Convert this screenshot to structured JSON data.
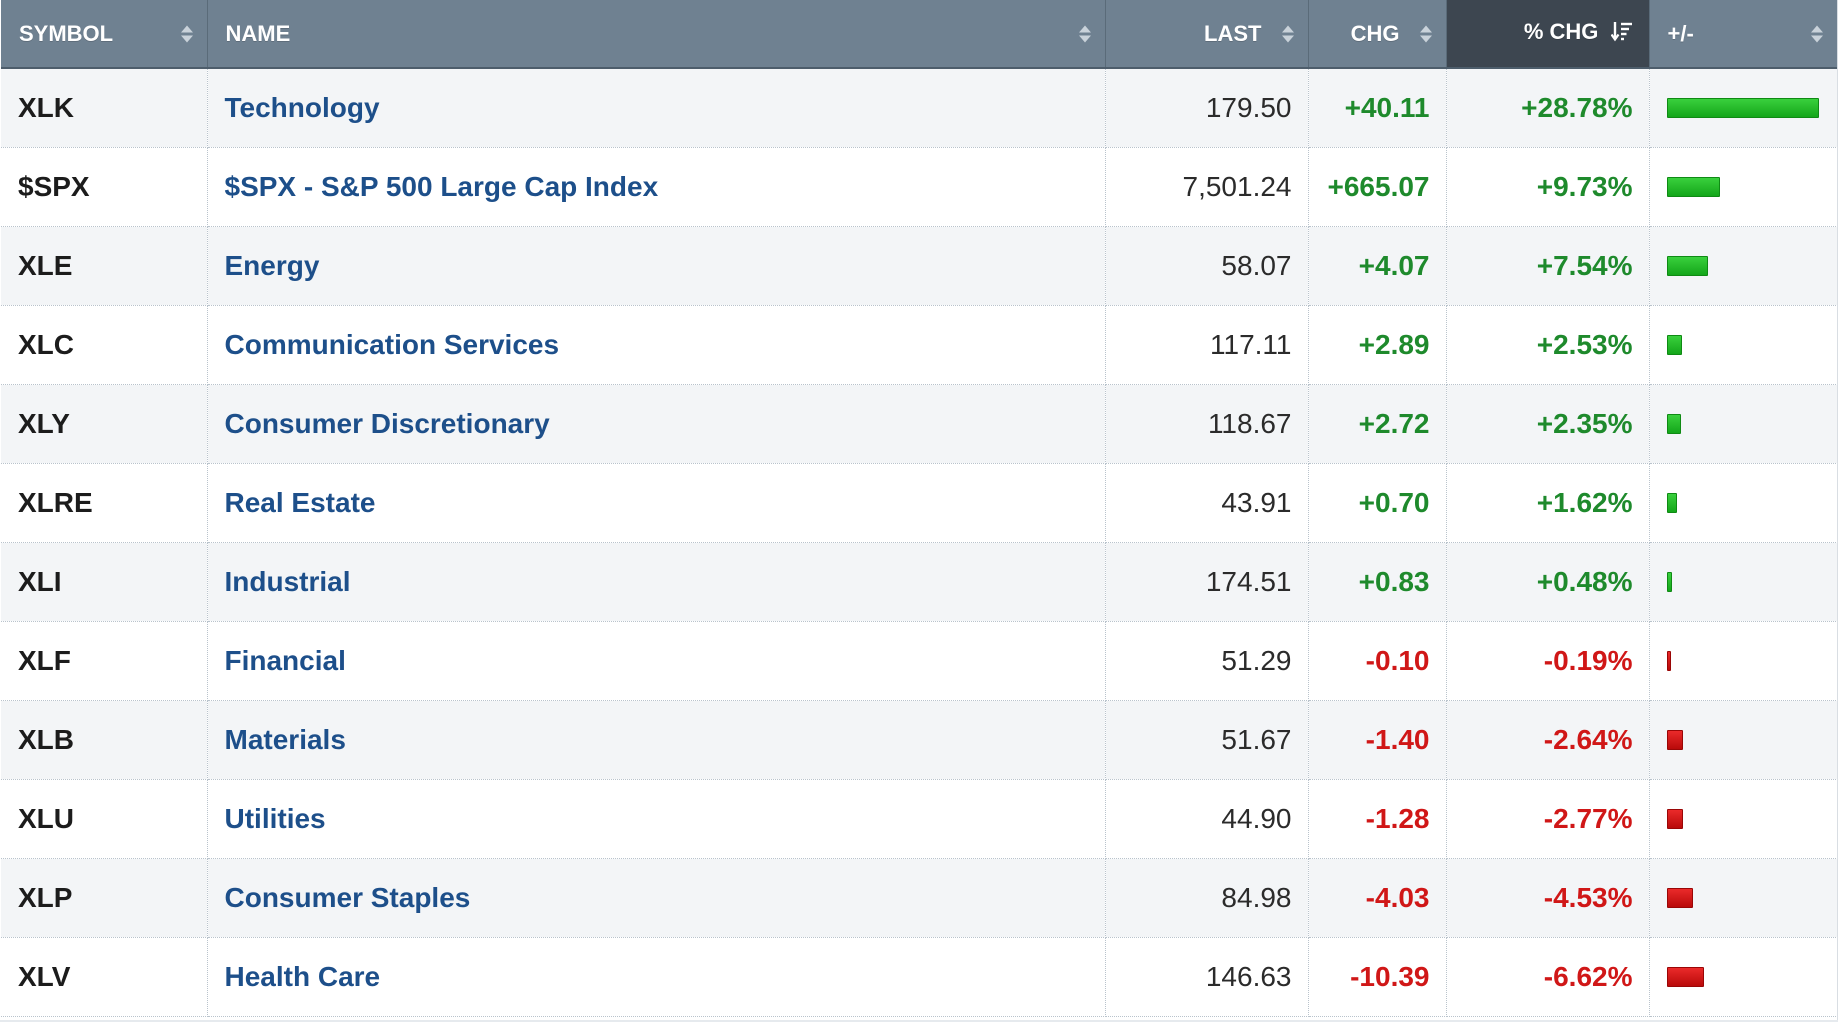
{
  "columns": {
    "symbol": "SYMBOL",
    "name": "NAME",
    "last": "LAST",
    "chg": "CHG",
    "pct_chg": "% CHG",
    "bar": "+/-"
  },
  "sort": {
    "column": "pct_chg",
    "direction": "descending"
  },
  "colors": {
    "header_bg": "#6f8191",
    "header_active_bg": "#3d4650",
    "name_link": "#1d4f8a",
    "positive": "#1e8a2c",
    "negative": "#d01717"
  },
  "rows": [
    {
      "symbol": "XLK",
      "name": "Technology",
      "last": "179.50",
      "chg": "+40.11",
      "pct": "+28.78%",
      "pct_value": 28.78
    },
    {
      "symbol": "$SPX",
      "name": "$SPX - S&P 500 Large Cap Index",
      "last": "7,501.24",
      "chg": "+665.07",
      "pct": "+9.73%",
      "pct_value": 9.73
    },
    {
      "symbol": "XLE",
      "name": "Energy",
      "last": "58.07",
      "chg": "+4.07",
      "pct": "+7.54%",
      "pct_value": 7.54
    },
    {
      "symbol": "XLC",
      "name": "Communication Services",
      "last": "117.11",
      "chg": "+2.89",
      "pct": "+2.53%",
      "pct_value": 2.53
    },
    {
      "symbol": "XLY",
      "name": "Consumer Discretionary",
      "last": "118.67",
      "chg": "+2.72",
      "pct": "+2.35%",
      "pct_value": 2.35
    },
    {
      "symbol": "XLRE",
      "name": "Real Estate",
      "last": "43.91",
      "chg": "+0.70",
      "pct": "+1.62%",
      "pct_value": 1.62
    },
    {
      "symbol": "XLI",
      "name": "Industrial",
      "last": "174.51",
      "chg": "+0.83",
      "pct": "+0.48%",
      "pct_value": 0.48
    },
    {
      "symbol": "XLF",
      "name": "Financial",
      "last": "51.29",
      "chg": "-0.10",
      "pct": "-0.19%",
      "pct_value": -0.19
    },
    {
      "symbol": "XLB",
      "name": "Materials",
      "last": "51.67",
      "chg": "-1.40",
      "pct": "-2.64%",
      "pct_value": -2.64
    },
    {
      "symbol": "XLU",
      "name": "Utilities",
      "last": "44.90",
      "chg": "-1.28",
      "pct": "-2.77%",
      "pct_value": -2.77
    },
    {
      "symbol": "XLP",
      "name": "Consumer Staples",
      "last": "84.98",
      "chg": "-4.03",
      "pct": "-4.53%",
      "pct_value": -4.53
    },
    {
      "symbol": "XLV",
      "name": "Health Care",
      "last": "146.63",
      "chg": "-10.39",
      "pct": "-6.62%",
      "pct_value": -6.62
    }
  ]
}
